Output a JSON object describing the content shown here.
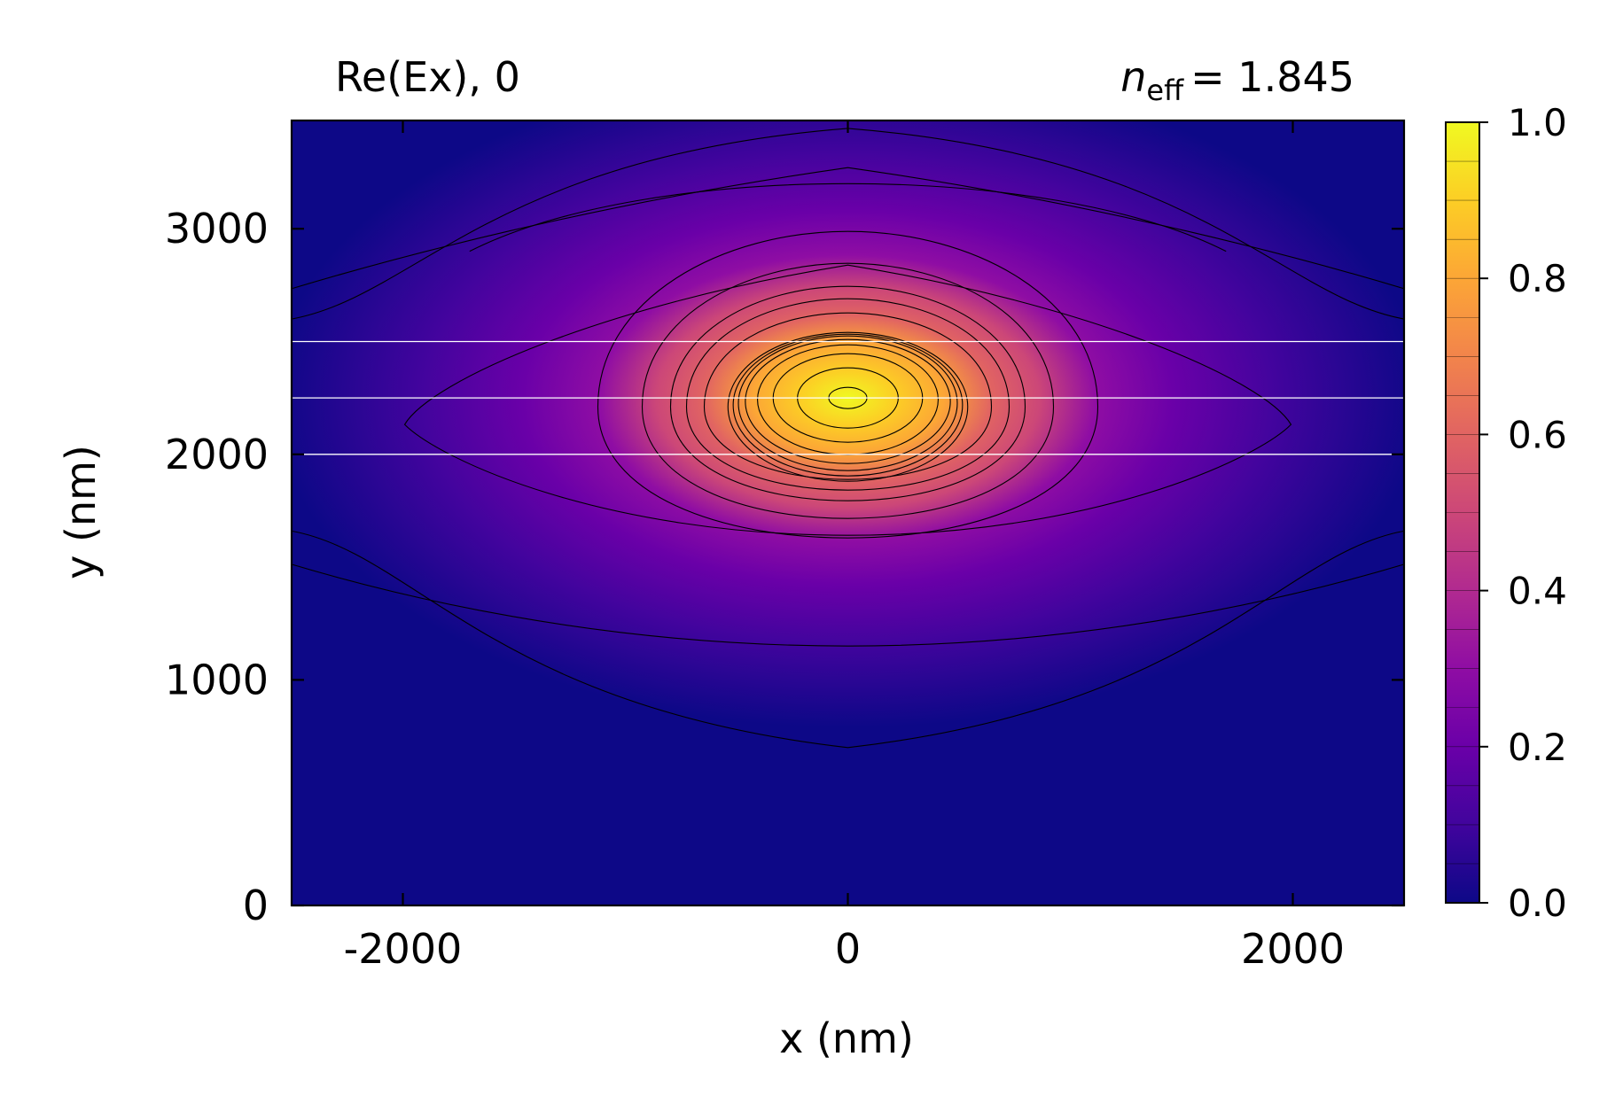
{
  "chart_data": {
    "type": "heatmap",
    "title_left": "Re(Ex), 0",
    "title_right_symbol": "n",
    "title_right_subscript": "eff",
    "title_right_value": "= 1.845",
    "xlabel": "x (nm)",
    "ylabel": "y (nm)",
    "xlim": [
      -2500,
      2500
    ],
    "ylim": [
      0,
      3480
    ],
    "xticks": [
      -2000,
      0,
      2000
    ],
    "yticks": [
      0,
      1000,
      2000,
      3000
    ],
    "colorbar": {
      "colormap": "plasma",
      "range": [
        0.0,
        1.0
      ],
      "ticks": [
        "0.0",
        "0.2",
        "0.4",
        "0.6",
        "0.8",
        "1.0"
      ],
      "tick_values": [
        0.0,
        0.2,
        0.4,
        0.6,
        0.8,
        1.0
      ],
      "levels": 20
    },
    "field": {
      "center": [
        0,
        2250
      ],
      "peak": 1.0,
      "background_color": "#0d0887"
    },
    "guide_lines_y": [
      2500,
      2250,
      2000
    ],
    "grid": false
  }
}
